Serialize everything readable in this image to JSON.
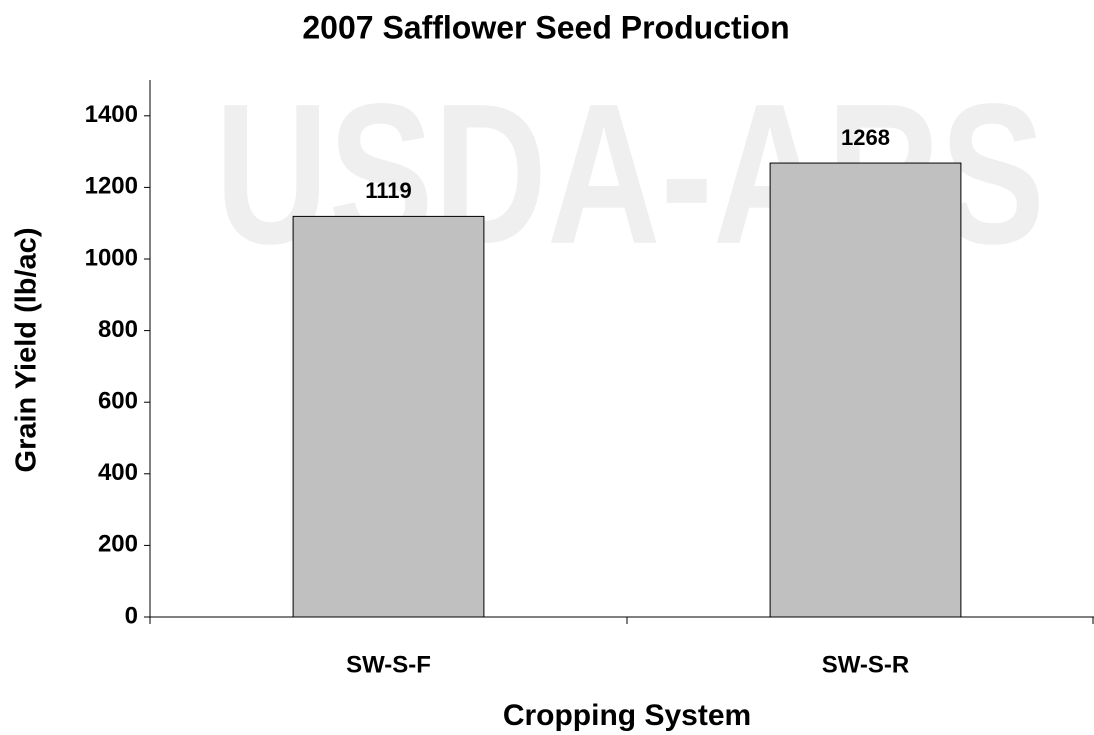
{
  "chart_data": {
    "type": "bar",
    "title": "2007 Safflower Seed Production",
    "watermark": "USDA-ARS",
    "x_label": "Cropping System",
    "y_label": "Grain Yield (lb/ac)",
    "categories": [
      "SW-S-F",
      "SW-S-R"
    ],
    "values": [
      1119,
      1268
    ],
    "color": "#c0c0c0",
    "ylim": [
      0,
      1500
    ],
    "yticks": [
      0,
      200,
      400,
      600,
      800,
      1000,
      1200,
      1400
    ],
    "grid": false
  }
}
